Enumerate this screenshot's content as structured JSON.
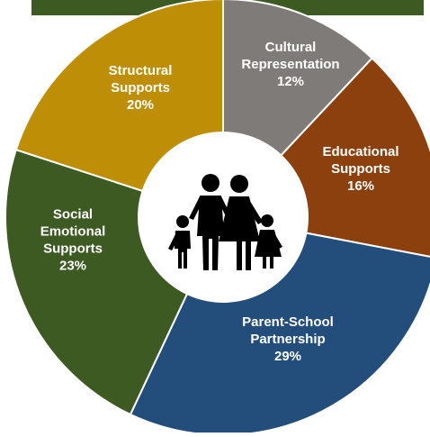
{
  "chart_data": {
    "type": "pie",
    "title": "",
    "slices": [
      {
        "lines": [
          "Cultural",
          "Representation",
          "12%"
        ],
        "value": 12,
        "color": "#7f7b78"
      },
      {
        "lines": [
          "Educational",
          "Supports",
          "16%"
        ],
        "value": 16,
        "color": "#8b400e"
      },
      {
        "lines": [
          "Parent-School",
          "Partnership",
          "29%"
        ],
        "value": 29,
        "color": "#234e7c"
      },
      {
        "lines": [
          "Social",
          "Emotional",
          "Supports",
          "23%"
        ],
        "value": 23,
        "color": "#3e5a23"
      },
      {
        "lines": [
          "Structural",
          "Supports",
          "20%"
        ],
        "value": 20,
        "color": "#bf8e07"
      }
    ],
    "center_icon": "family-icon",
    "banner_color": "#3e5a23",
    "label_color": "#ffffff"
  }
}
